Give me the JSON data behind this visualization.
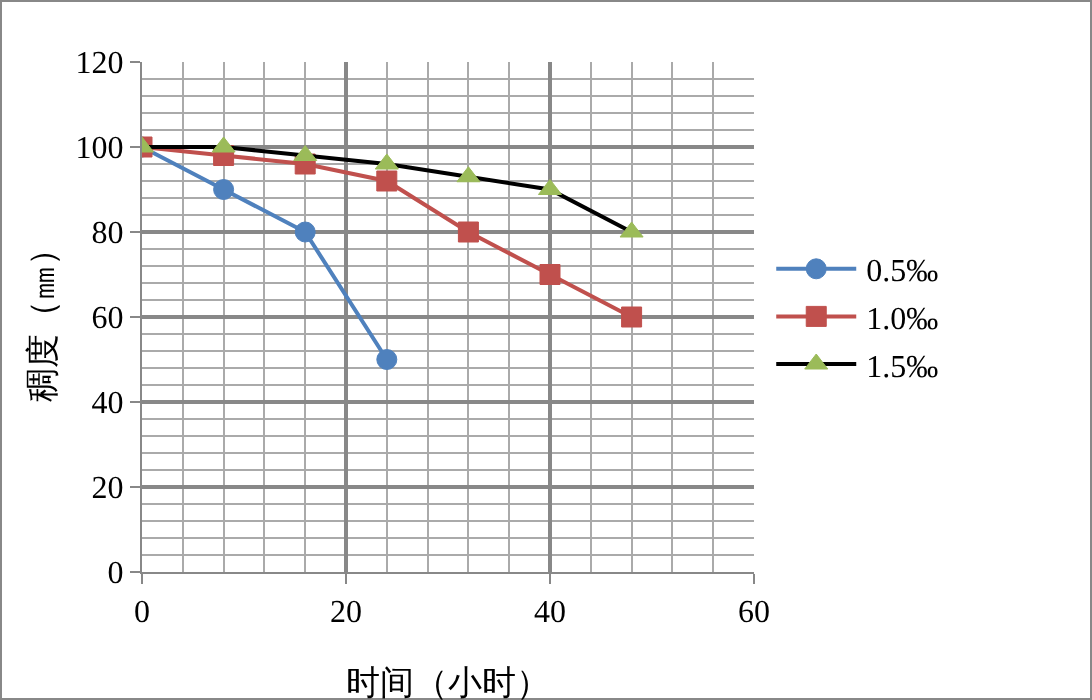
{
  "chart_data": {
    "type": "line",
    "xlabel": "时间（小时）",
    "ylabel": "稠度（㎜）",
    "xlim": [
      0,
      60
    ],
    "xticks": [
      0,
      20,
      40,
      60
    ],
    "ylim": [
      0,
      120
    ],
    "yticks": [
      0,
      20,
      40,
      60,
      80,
      100,
      120
    ],
    "grid": true,
    "legend": "right",
    "line_style": "solid",
    "series": [
      {
        "name": "0.5‰",
        "color": "#4f81bd",
        "marker": "circle",
        "x": [
          0,
          8,
          16,
          24
        ],
        "values": [
          100,
          90,
          80,
          50
        ]
      },
      {
        "name": "1.0‰",
        "color": "#c0504d",
        "marker": "square",
        "x": [
          0,
          8,
          16,
          24,
          32,
          40,
          48
        ],
        "values": [
          100,
          98,
          96,
          92,
          80,
          70,
          60
        ]
      },
      {
        "name": "1.5‰",
        "color": "#000000",
        "colors": [
          "#9bbb59",
          "#9bbb59",
          "#9bbb59",
          "#9bbb59",
          "#9bbb59",
          "#9bbb59",
          "#9bbb59"
        ],
        "marker": "triangle",
        "x": [
          0,
          8,
          16,
          24,
          32,
          40,
          48
        ],
        "values": [
          100,
          100,
          98,
          96,
          93,
          90,
          80
        ]
      }
    ]
  }
}
